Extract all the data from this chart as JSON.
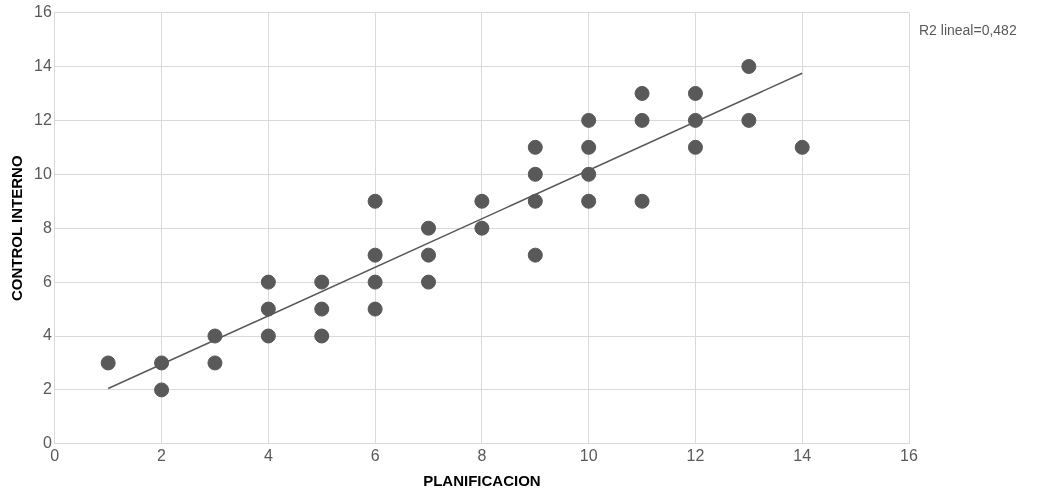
{
  "chart_data": {
    "type": "scatter",
    "xlabel": "PLANIFICACION",
    "ylabel": "CONTROL INTERNO",
    "xlim": [
      0,
      16
    ],
    "xticks": [
      0,
      2,
      4,
      6,
      8,
      10,
      12,
      14,
      16
    ],
    "ylim": [
      0,
      16
    ],
    "yticks": [
      0,
      2,
      4,
      6,
      8,
      10,
      12,
      14,
      16
    ],
    "grid": true,
    "legend": false,
    "marker": "circle",
    "annotations": [
      "R2 lineal=0,482"
    ],
    "series": [
      {
        "color": "#595959",
        "x": [
          1,
          2,
          2,
          3,
          3,
          4,
          4,
          4,
          5,
          5,
          5,
          6,
          6,
          6,
          6,
          7,
          7,
          7,
          8,
          8,
          9,
          9,
          9,
          9,
          10,
          10,
          10,
          10,
          11,
          11,
          11,
          12,
          12,
          12,
          13,
          13,
          14
        ],
        "values": [
          3,
          3,
          2,
          4,
          3,
          6,
          5,
          4,
          6,
          5,
          4,
          9,
          7,
          6,
          5,
          8,
          7,
          6,
          9,
          8,
          11,
          10,
          9,
          7,
          12,
          11,
          10,
          9,
          13,
          12,
          9,
          13,
          12,
          11,
          14,
          12,
          11
        ]
      },
      {
        "type": "line",
        "marker": "none",
        "color": "#595959",
        "x": [
          1,
          14
        ],
        "values": [
          2.05,
          13.75
        ]
      }
    ]
  }
}
